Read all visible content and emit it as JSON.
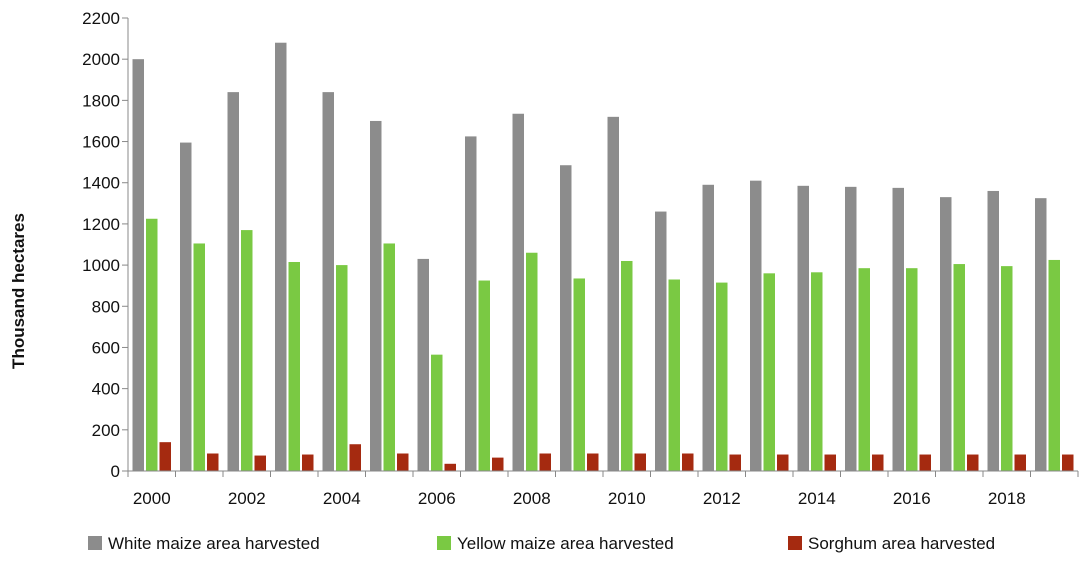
{
  "chart_data": {
    "type": "bar",
    "ylabel": "Thousand hectares",
    "xlabel": "",
    "title": "",
    "ylim": [
      0,
      2200
    ],
    "yticks": [
      0,
      200,
      400,
      600,
      800,
      1000,
      1200,
      1400,
      1600,
      1800,
      2000,
      2200
    ],
    "categories": [
      "2000",
      "2001",
      "2002",
      "2003",
      "2004",
      "2005",
      "2006",
      "2007",
      "2008",
      "2009",
      "2010",
      "2011",
      "2012",
      "2013",
      "2014",
      "2015",
      "2016",
      "2017",
      "2018",
      "2019"
    ],
    "x_tick_labels": [
      "2000",
      "2002",
      "2004",
      "2006",
      "2008",
      "2010",
      "2012",
      "2014",
      "2016",
      "2018"
    ],
    "grid": false,
    "legend_position": "bottom",
    "series": [
      {
        "name": "White maize area harvested",
        "color": "#8c8c8c",
        "values": [
          2000,
          1595,
          1840,
          2080,
          1840,
          1700,
          1030,
          1625,
          1735,
          1485,
          1720,
          1260,
          1390,
          1410,
          1385,
          1380,
          1375,
          1330,
          1360,
          1325
        ]
      },
      {
        "name": "Yellow maize area harvested",
        "color": "#7ac943",
        "values": [
          1225,
          1105,
          1170,
          1015,
          1000,
          1105,
          565,
          925,
          1060,
          935,
          1020,
          930,
          915,
          960,
          965,
          985,
          985,
          1005,
          995,
          1025
        ]
      },
      {
        "name": "Sorghum area harvested",
        "color": "#a52a10",
        "values": [
          140,
          85,
          75,
          80,
          130,
          85,
          35,
          65,
          85,
          85,
          85,
          85,
          80,
          80,
          80,
          80,
          80,
          80,
          80,
          80
        ]
      }
    ]
  }
}
